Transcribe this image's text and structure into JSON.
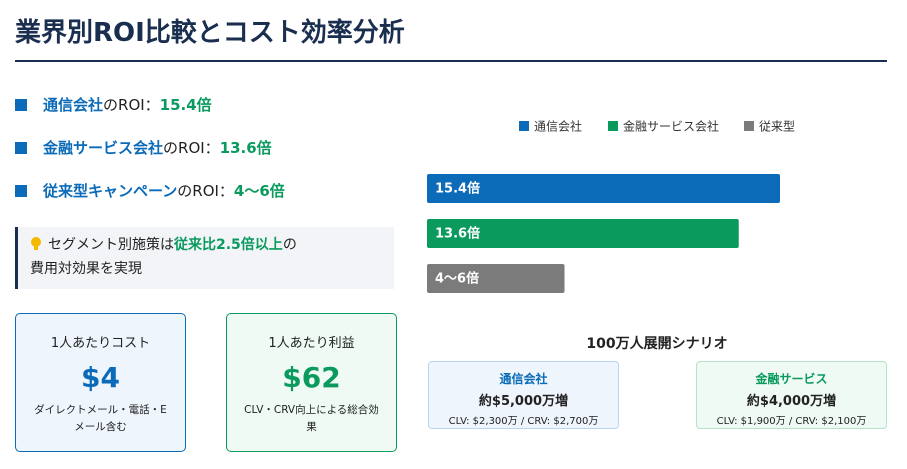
{
  "header": {
    "title": "業界別ROI比較とコスト効率分析"
  },
  "bullets": [
    {
      "label": "通信会社",
      "text": "のROI：",
      "value": "15.4倍"
    },
    {
      "label": "金融サービス会社",
      "text": "のROI：",
      "value": "13.6倍"
    },
    {
      "label": "従来型キャンペーン",
      "text": "のROI：",
      "value": "4〜6倍"
    }
  ],
  "callout": {
    "text": "セグメント別施策は",
    "highlight": "従来比2.5倍以上",
    "tail": "の",
    "line2": "費用対効果を実現"
  },
  "cards": [
    {
      "title": "1人あたりコスト",
      "value": "$4",
      "note": "ダイレクトメール・電話・Eメール含む"
    },
    {
      "title": "1人あたり利益",
      "value": "$62",
      "note": "CLV・CRV向上による総合効果"
    }
  ],
  "chart_data": {
    "type": "bar",
    "orientation": "horizontal",
    "series": [
      {
        "name": "通信会社",
        "color": "#0b6bb8",
        "values": [
          15.4
        ],
        "value_labels": [
          "15.4倍"
        ]
      },
      {
        "name": "金融サービス会社",
        "color": "#0a9a5e",
        "values": [
          13.6
        ],
        "value_labels": [
          "13.6倍"
        ]
      },
      {
        "name": "従来型",
        "color": "#7b7b7b",
        "values": [
          6
        ],
        "value_labels": [
          "4〜6倍"
        ]
      }
    ]
  },
  "scenario": {
    "title": "100万人展開シナリオ",
    "boxes": [
      {
        "label": "通信会社",
        "value": "約$5,000万増",
        "detail": "CLV: $2,300万 / CRV: $2,700万"
      },
      {
        "label": "金融サービス",
        "value": "約$4,000万増",
        "detail": "CLV: $1,900万 / CRV: $2,100万"
      }
    ]
  }
}
